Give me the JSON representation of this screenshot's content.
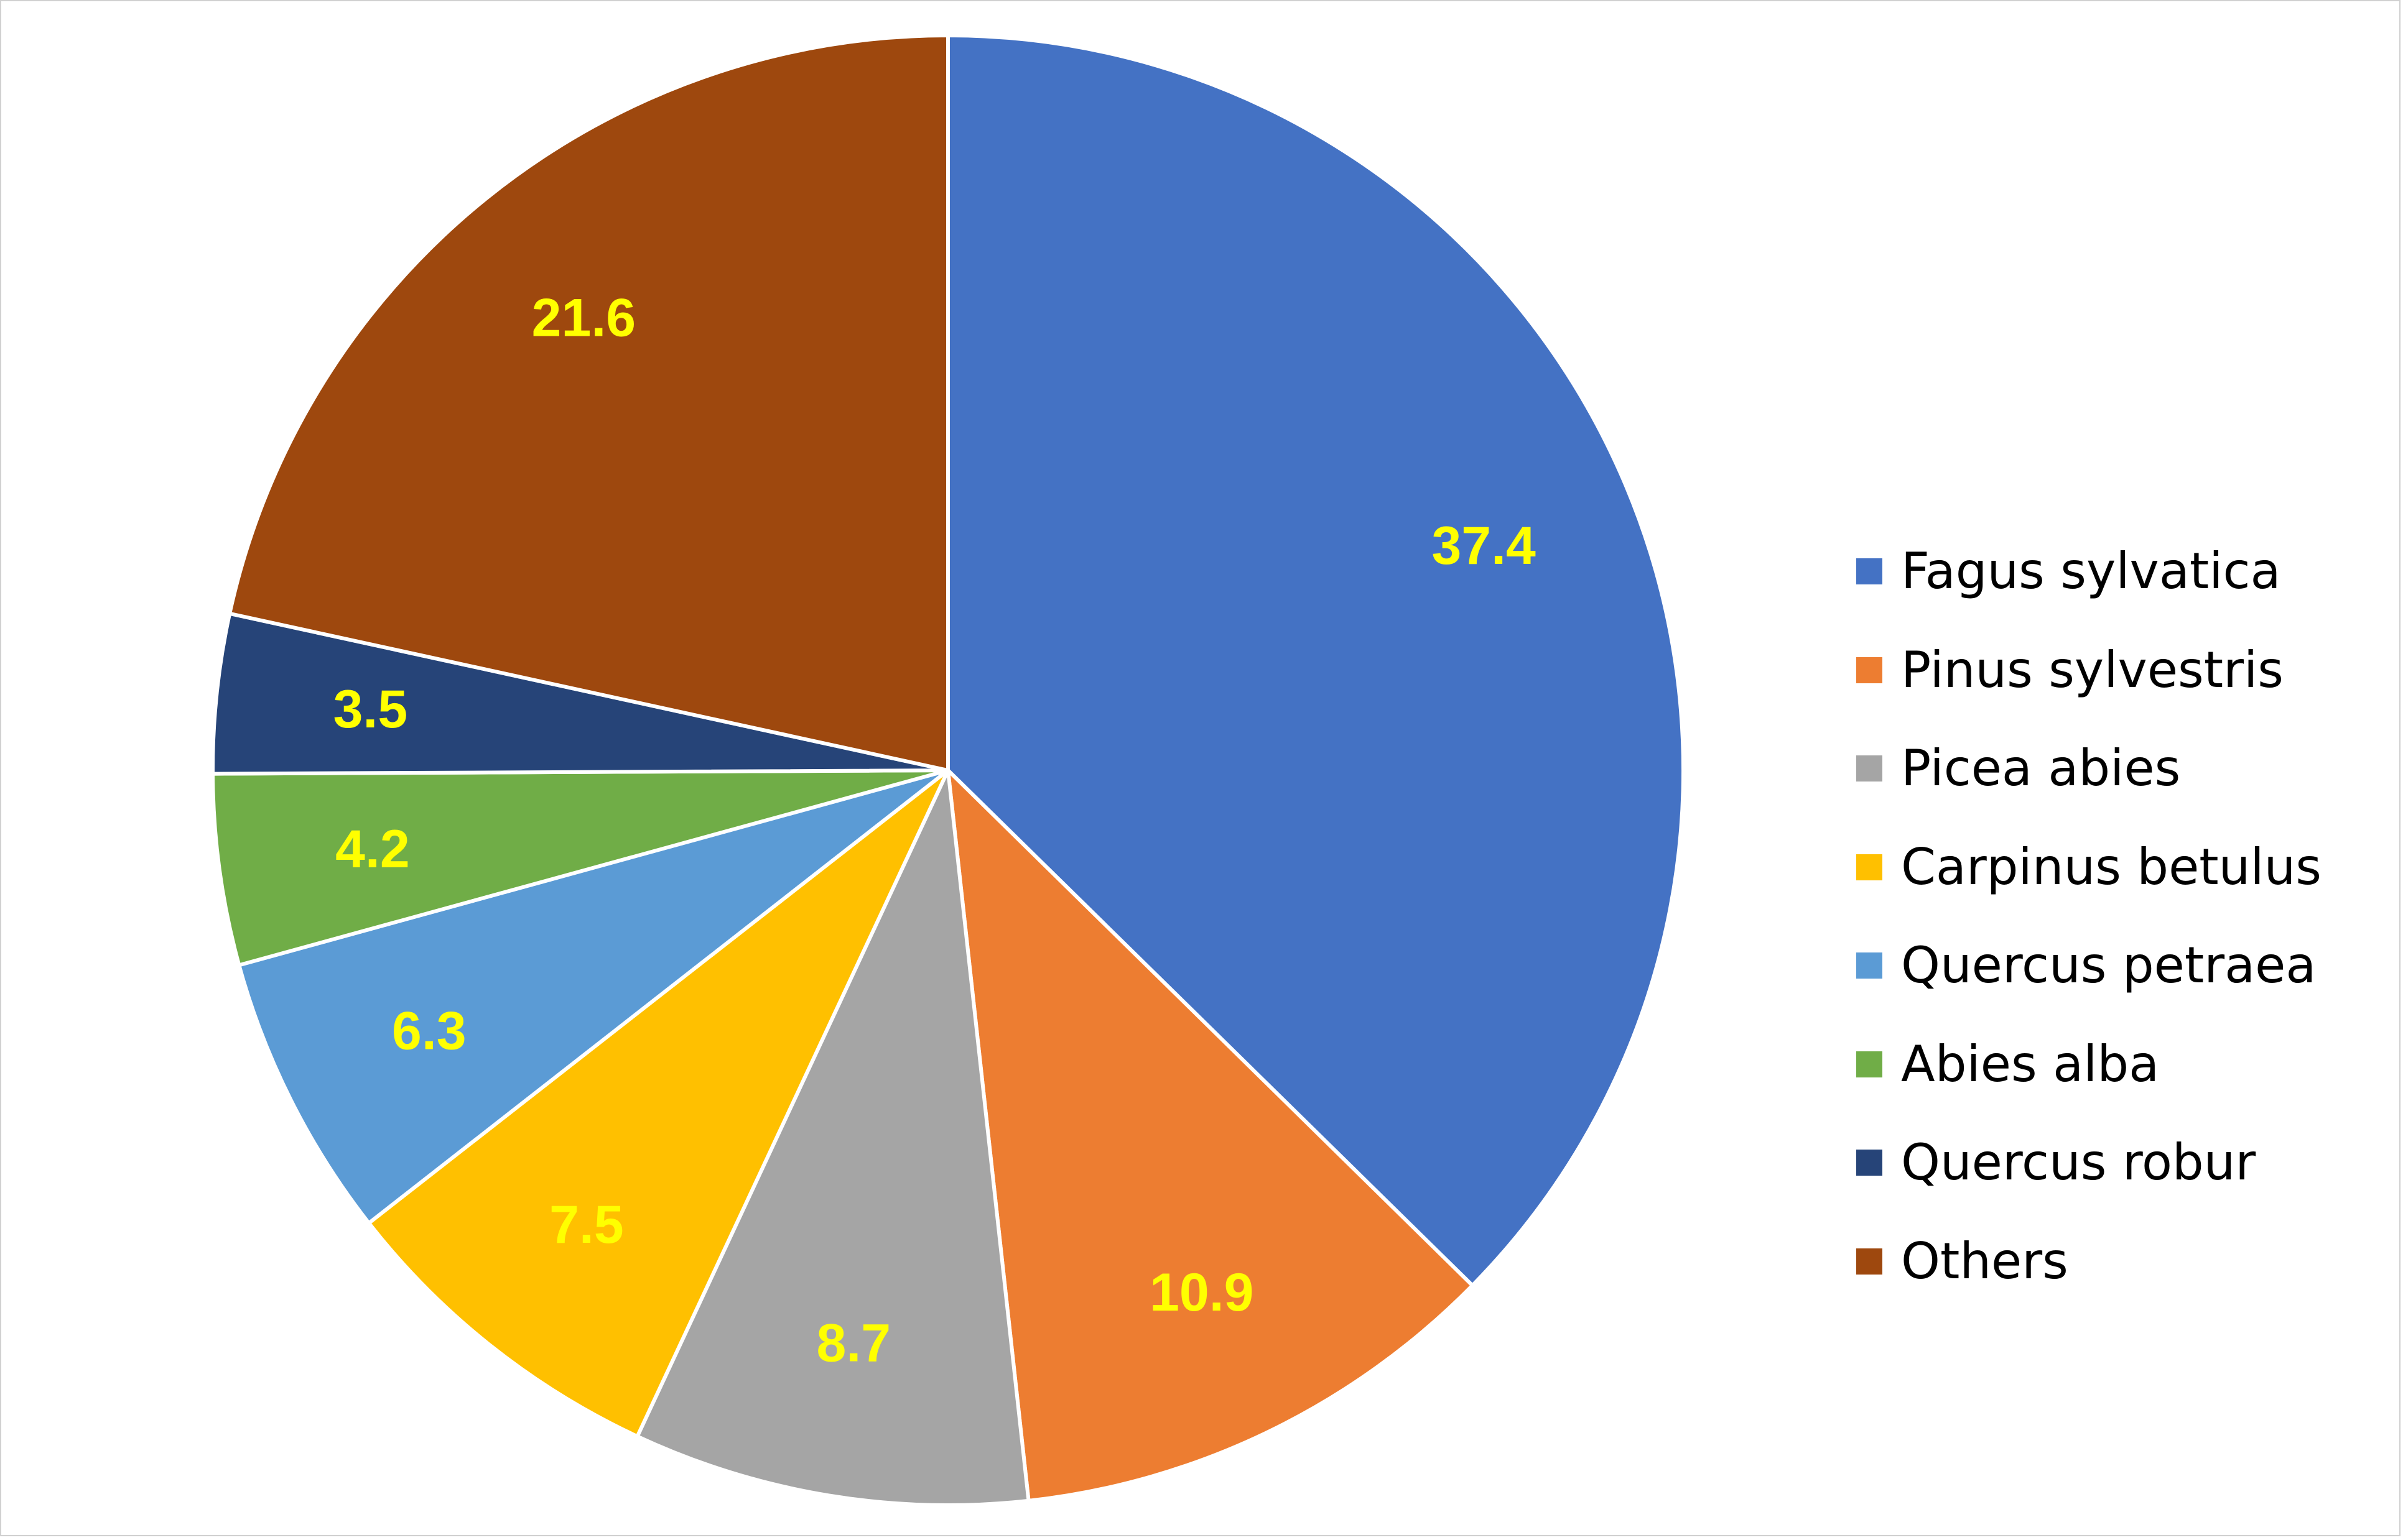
{
  "chart_data": {
    "type": "pie",
    "title": "",
    "legend_position": "right",
    "start_angle_deg": 0,
    "direction": "clockwise",
    "label_color": "#ffff00",
    "slices": [
      {
        "name": "Fagus sylvatica",
        "value": 37.4,
        "label": "37.4",
        "color": "#4472c4"
      },
      {
        "name": "Pinus sylvestris",
        "value": 10.9,
        "label": "10.9",
        "color": "#ed7d31"
      },
      {
        "name": "Picea abies",
        "value": 8.7,
        "label": "8.7",
        "color": "#a5a5a5"
      },
      {
        "name": "Carpinus betulus",
        "value": 7.5,
        "label": "7.5",
        "color": "#ffc000"
      },
      {
        "name": "Quercus petraea",
        "value": 6.3,
        "label": "6.3",
        "color": "#5b9bd5"
      },
      {
        "name": "Abies alba",
        "value": 4.2,
        "label": "4.2",
        "color": "#70ad47"
      },
      {
        "name": "Quercus robur",
        "value": 3.5,
        "label": "3.5",
        "color": "#264478"
      },
      {
        "name": "Others",
        "value": 21.6,
        "label": "21.6",
        "color": "#9e480e"
      }
    ]
  }
}
